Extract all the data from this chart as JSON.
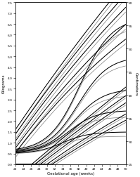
{
  "xlabel": "Gestational age (weeks)",
  "ylabel_left": "Kilograms",
  "ylabel_right": "Centimeters",
  "xlim": [
    22,
    50
  ],
  "ylim_left": [
    0.0,
    7.5
  ],
  "yticks_left": [
    0.0,
    0.5,
    1.0,
    1.5,
    2.0,
    2.5,
    3.0,
    3.5,
    4.0,
    4.5,
    5.0,
    5.5,
    6.0,
    6.5,
    7.0,
    7.5
  ],
  "yticks_right": [
    25,
    30,
    35,
    40,
    45,
    50,
    55,
    60
  ],
  "xticks": [
    22,
    24,
    26,
    28,
    30,
    32,
    34,
    36,
    38,
    40,
    42,
    44,
    46,
    48,
    50
  ],
  "cm_min": 25,
  "cm_max": 60,
  "kg_min": 0.0,
  "kg_max": 7.5,
  "background_color": "#ffffff"
}
